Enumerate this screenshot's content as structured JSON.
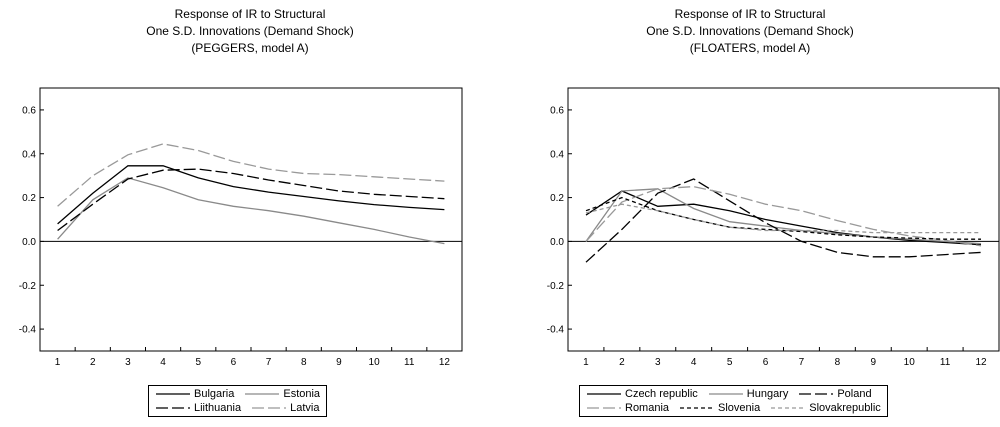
{
  "chart_data": [
    {
      "type": "line",
      "title": [
        "Response of IR to Structural",
        "One S.D. Innovations (Demand Shock)",
        "(PEGGERS, model A)"
      ],
      "x": [
        1,
        2,
        3,
        4,
        5,
        6,
        7,
        8,
        9,
        10,
        11,
        12
      ],
      "ylim": [
        -0.5,
        0.7
      ],
      "yticks": [
        "0.6",
        "0.4",
        "0.2",
        "0.0",
        "-0.2",
        "-0.4"
      ],
      "zero_line": true,
      "grid": false,
      "legend_position": "bottom-center",
      "series": [
        {
          "name": "Bulgaria",
          "style": "solid",
          "color": "#000000",
          "values": [
            0.08,
            0.22,
            0.345,
            0.345,
            0.29,
            0.25,
            0.225,
            0.205,
            0.185,
            0.168,
            0.155,
            0.145
          ]
        },
        {
          "name": "Estonia",
          "style": "solid",
          "color": "#8a8a8a",
          "values": [
            0.01,
            0.19,
            0.29,
            0.245,
            0.19,
            0.16,
            0.14,
            0.115,
            0.085,
            0.055,
            0.02,
            -0.01
          ]
        },
        {
          "name": "Liithuania",
          "style": "longdash",
          "color": "#000000",
          "values": [
            0.05,
            0.17,
            0.285,
            0.325,
            0.33,
            0.31,
            0.28,
            0.255,
            0.23,
            0.215,
            0.205,
            0.195
          ]
        },
        {
          "name": "Latvia",
          "style": "longdash",
          "color": "#999999",
          "values": [
            0.16,
            0.3,
            0.395,
            0.445,
            0.415,
            0.365,
            0.33,
            0.31,
            0.305,
            0.295,
            0.285,
            0.275
          ]
        }
      ],
      "legend_rows": [
        [
          "Bulgaria",
          "Estonia"
        ],
        [
          "Liithuania",
          "Latvia"
        ]
      ]
    },
    {
      "type": "line",
      "title": [
        "Response of IR to Structural",
        "One S.D. Innovations (Demand Shock)",
        "(FLOATERS, model A)"
      ],
      "x": [
        1,
        2,
        3,
        4,
        5,
        6,
        7,
        8,
        9,
        10,
        11,
        12
      ],
      "ylim": [
        -0.5,
        0.7
      ],
      "yticks": [
        "0.6",
        "0.4",
        "0.2",
        "0.0",
        "-0.2",
        "-0.4"
      ],
      "zero_line": true,
      "grid": false,
      "legend_position": "bottom-center",
      "series": [
        {
          "name": "Czech republic",
          "style": "solid",
          "color": "#000000",
          "values": [
            0.12,
            0.23,
            0.16,
            0.17,
            0.14,
            0.1,
            0.07,
            0.04,
            0.02,
            0.005,
            -0.005,
            -0.015
          ]
        },
        {
          "name": "Hungary",
          "style": "solid",
          "color": "#8a8a8a",
          "values": [
            0.0,
            0.23,
            0.24,
            0.15,
            0.09,
            0.07,
            0.05,
            0.035,
            0.02,
            0.01,
            0.0,
            -0.01
          ]
        },
        {
          "name": "Poland",
          "style": "longdash",
          "color": "#000000",
          "values": [
            -0.095,
            0.055,
            0.22,
            0.285,
            0.185,
            0.085,
            0.0,
            -0.05,
            -0.07,
            -0.07,
            -0.06,
            -0.05
          ]
        },
        {
          "name": "Romania",
          "style": "longdash",
          "color": "#999999",
          "values": [
            0.0,
            0.18,
            0.24,
            0.25,
            0.215,
            0.17,
            0.14,
            0.095,
            0.055,
            0.025,
            0.005,
            -0.02
          ]
        },
        {
          "name": "Slovenia",
          "style": "dash",
          "color": "#000000",
          "values": [
            0.14,
            0.2,
            0.14,
            0.1,
            0.065,
            0.055,
            0.045,
            0.03,
            0.02,
            0.015,
            0.01,
            0.01
          ]
        },
        {
          "name": "Slovakrepublic",
          "style": "dash",
          "color": "#999999",
          "values": [
            0.13,
            0.17,
            0.14,
            0.1,
            0.065,
            0.05,
            0.05,
            0.05,
            0.04,
            0.04,
            0.04,
            0.04
          ]
        }
      ],
      "legend_rows": [
        [
          "Czech republic",
          "Hungary",
          "Poland"
        ],
        [
          "Romania",
          "Slovenia",
          "Slovakrepublic"
        ]
      ]
    }
  ]
}
